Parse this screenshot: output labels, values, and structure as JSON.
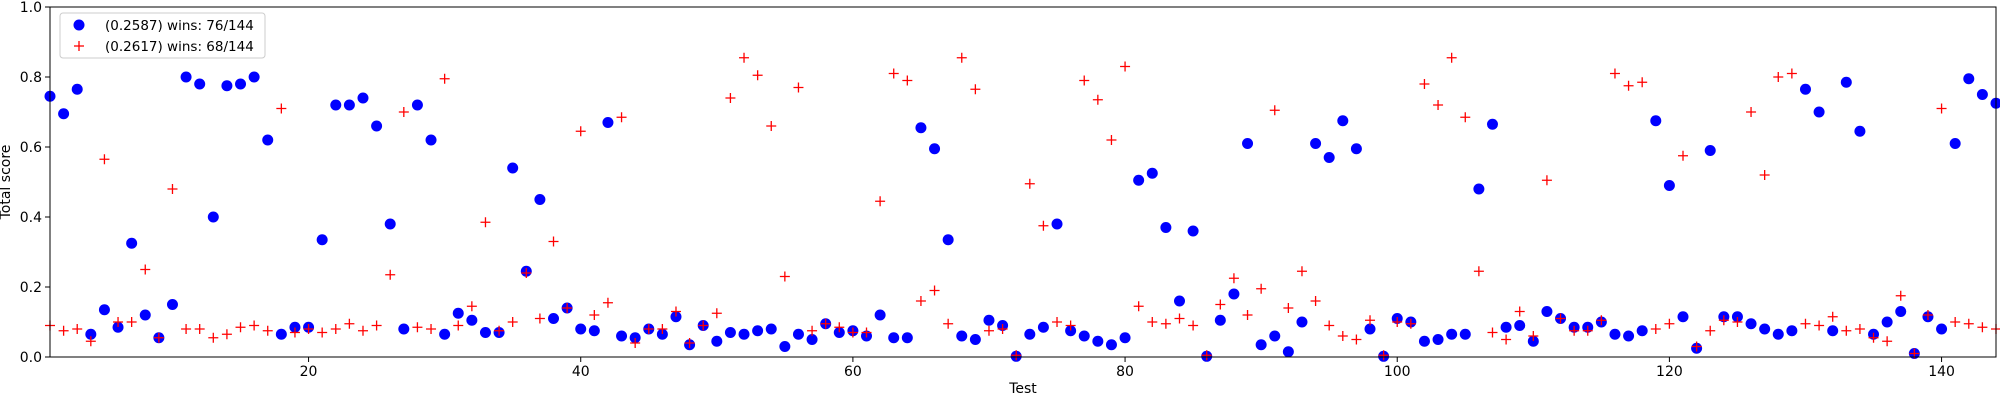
{
  "chart_data": {
    "type": "scatter",
    "title": "",
    "xlabel": "Test",
    "ylabel": "Total score",
    "xlim": [
      1,
      144
    ],
    "ylim": [
      0,
      1.0
    ],
    "x_ticks": [
      20,
      40,
      60,
      80,
      100,
      120,
      140
    ],
    "y_ticks": [
      0.0,
      0.2,
      0.4,
      0.6,
      0.8,
      1.0
    ],
    "grid": false,
    "legend_position": "top-left",
    "series": [
      {
        "name": "(0.2587) wins: 76/144",
        "marker": "circle",
        "color": "#0000ff",
        "values": [
          0.745,
          0.695,
          0.765,
          0.065,
          0.135,
          0.085,
          0.325,
          0.12,
          0.055,
          0.15,
          0.8,
          0.78,
          0.4,
          0.775,
          0.78,
          0.8,
          0.62,
          0.065,
          0.085,
          0.085,
          0.335,
          0.72,
          0.72,
          0.74,
          0.66,
          0.38,
          0.08,
          0.72,
          0.62,
          0.065,
          0.125,
          0.105,
          0.07,
          0.07,
          0.54,
          0.245,
          0.45,
          0.11,
          0.14,
          0.08,
          0.075,
          0.67,
          0.06,
          0.055,
          0.08,
          0.065,
          0.115,
          0.035,
          0.09,
          0.045,
          0.07,
          0.065,
          0.075,
          0.08,
          0.03,
          0.065,
          0.05,
          0.095,
          0.07,
          0.075,
          0.06,
          0.12,
          0.055,
          0.055,
          0.655,
          0.595,
          0.335,
          0.06,
          0.05,
          0.105,
          0.09,
          0.002,
          0.065,
          0.085,
          0.38,
          0.075,
          0.06,
          0.045,
          0.035,
          0.055,
          0.505,
          0.525,
          0.37,
          0.16,
          0.36,
          0.002,
          0.105,
          0.18,
          0.61,
          0.035,
          0.06,
          0.015,
          0.1,
          0.61,
          0.57,
          0.675,
          0.595,
          0.08,
          0.002,
          0.11,
          0.1,
          0.045,
          0.05,
          0.065,
          0.065,
          0.48,
          0.665,
          0.085,
          0.09,
          0.045,
          0.13,
          0.11,
          0.085,
          0.085,
          0.1,
          0.065,
          0.06,
          0.075,
          0.675,
          0.49,
          0.115,
          0.025,
          0.59,
          0.115,
          0.115,
          0.095,
          0.08,
          0.065,
          0.075,
          0.765,
          0.7,
          0.075,
          0.785,
          0.645,
          0.065,
          0.1,
          0.13,
          0.01,
          0.115,
          0.08,
          0.61,
          0.795,
          0.75,
          0.725
        ]
      },
      {
        "name": "(0.2617) wins: 68/144",
        "marker": "plus",
        "color": "#ff0000",
        "values": [
          0.09,
          0.075,
          0.08,
          0.045,
          0.565,
          0.1,
          0.1,
          0.25,
          0.055,
          0.48,
          0.08,
          0.08,
          0.055,
          0.065,
          0.085,
          0.09,
          0.075,
          0.71,
          0.07,
          0.08,
          0.07,
          0.08,
          0.095,
          0.075,
          0.09,
          0.235,
          0.7,
          0.085,
          0.08,
          0.795,
          0.09,
          0.145,
          0.385,
          0.075,
          0.1,
          0.24,
          0.11,
          0.33,
          0.14,
          0.645,
          0.12,
          0.155,
          0.685,
          0.04,
          0.08,
          0.08,
          0.13,
          0.04,
          0.09,
          0.125,
          0.74,
          0.855,
          0.805,
          0.66,
          0.23,
          0.77,
          0.075,
          0.095,
          0.085,
          0.07,
          0.07,
          0.445,
          0.81,
          0.79,
          0.16,
          0.19,
          0.095,
          0.855,
          0.765,
          0.075,
          0.08,
          0.005,
          0.495,
          0.375,
          0.1,
          0.09,
          0.79,
          0.735,
          0.62,
          0.83,
          0.145,
          0.1,
          0.095,
          0.11,
          0.09,
          0.005,
          0.15,
          0.225,
          0.12,
          0.195,
          0.705,
          0.14,
          0.245,
          0.16,
          0.09,
          0.06,
          0.05,
          0.105,
          0.005,
          0.1,
          0.095,
          0.78,
          0.72,
          0.855,
          0.685,
          0.245,
          0.07,
          0.05,
          0.13,
          0.06,
          0.505,
          0.11,
          0.075,
          0.075,
          0.105,
          0.81,
          0.775,
          0.785,
          0.08,
          0.095,
          0.575,
          0.03,
          0.075,
          0.105,
          0.1,
          0.7,
          0.52,
          0.8,
          0.81,
          0.095,
          0.09,
          0.115,
          0.075,
          0.08,
          0.055,
          0.045,
          0.175,
          0.01,
          0.12,
          0.71,
          0.1,
          0.095,
          0.085,
          0.08
        ]
      }
    ]
  }
}
